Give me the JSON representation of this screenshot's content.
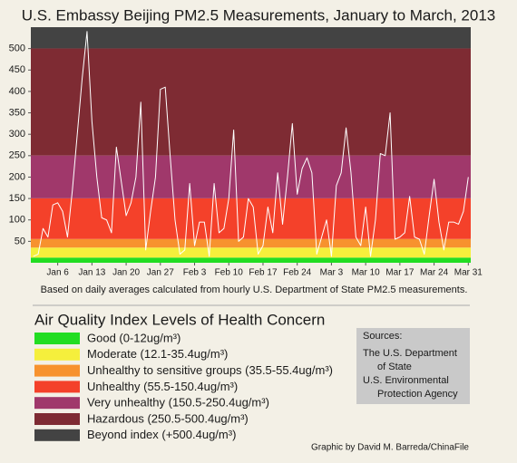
{
  "chart_data": {
    "type": "line",
    "title": "U.S. Embassy Beijing PM2.5 Measurements, January to March, 2013",
    "caption": "Based on daily averages calculated from hourly U.S. Department of State PM2.5 measurements.",
    "legend_title": "Air Quality Index Levels of Health Concern",
    "categories": [
      null,
      null,
      null,
      null,
      null,
      "Jan 6",
      null,
      null,
      null,
      null,
      null,
      null,
      "Jan 13",
      null,
      null,
      null,
      null,
      null,
      null,
      "Jan 20",
      null,
      null,
      null,
      null,
      null,
      null,
      "Jan 27",
      null,
      null,
      null,
      null,
      null,
      null,
      "Feb 3",
      null,
      null,
      null,
      null,
      null,
      null,
      "Feb 10",
      null,
      null,
      null,
      null,
      null,
      null,
      "Feb 17",
      null,
      null,
      null,
      null,
      null,
      null,
      "Feb 24",
      null,
      null,
      null,
      null,
      null,
      null,
      "Mar 3",
      null,
      null,
      null,
      null,
      null,
      null,
      "Mar 10",
      null,
      null,
      null,
      null,
      null,
      null,
      "Mar 17",
      null,
      null,
      null,
      null,
      null,
      null,
      "Mar 24",
      null,
      null,
      null,
      null,
      null,
      null,
      "Mar 31"
    ],
    "series": [
      {
        "color": "#ffffff",
        "values": [
          15,
          20,
          80,
          60,
          135,
          140,
          120,
          60,
          170,
          300,
          430,
          540,
          330,
          200,
          105,
          100,
          70,
          270,
          190,
          110,
          140,
          200,
          375,
          30,
          120,
          200,
          405,
          410,
          250,
          100,
          20,
          30,
          185,
          40,
          95,
          95,
          15,
          185,
          70,
          80,
          150,
          310,
          50,
          60,
          150,
          130,
          20,
          40,
          130,
          70,
          210,
          90,
          200,
          325,
          160,
          220,
          245,
          210,
          20,
          60,
          100,
          15,
          180,
          210,
          315,
          210,
          60,
          40,
          130,
          15,
          100,
          255,
          250,
          350,
          55,
          60,
          70,
          155,
          60,
          55,
          20,
          110,
          195,
          95,
          30,
          95,
          95,
          90,
          120,
          200
        ]
      }
    ],
    "ylim": [
      0,
      550
    ],
    "yticks": [
      50,
      100,
      150,
      200,
      250,
      300,
      350,
      400,
      450,
      500
    ],
    "bands": [
      {
        "label": "Good (0-12ug/m³)",
        "color": "#22dd22",
        "range": [
          0,
          12
        ]
      },
      {
        "label": "Moderate (12.1-35.4ug/m³)",
        "color": "#f5ef3c",
        "range": [
          12.1,
          35.4
        ]
      },
      {
        "label": "Unhealthy to sensitive groups (35.5-55.4ug/m³)",
        "color": "#f7922e",
        "range": [
          35.5,
          55.4
        ]
      },
      {
        "label": "Unhealthy (55.5-150.4ug/m³)",
        "color": "#f4412a",
        "range": [
          55.5,
          150.4
        ]
      },
      {
        "label": "Very unhealthy (150.5-250.4ug/m³)",
        "color": "#a0386b",
        "range": [
          150.5,
          250.4
        ]
      },
      {
        "label": "Hazardous (250.5-500.4ug/m³)",
        "color": "#7e2b33",
        "range": [
          250.5,
          500.4
        ]
      },
      {
        "label": "Beyond index (+500.4ug/m³)",
        "color": "#434343",
        "range": [
          500.4,
          null
        ]
      }
    ]
  },
  "sources": {
    "heading": "Sources:",
    "lines": [
      "The U.S. Department",
      "of State",
      "U.S. Environmental",
      "Protection Agency"
    ]
  },
  "credit": "Graphic by David M. Barreda/ChinaFile"
}
